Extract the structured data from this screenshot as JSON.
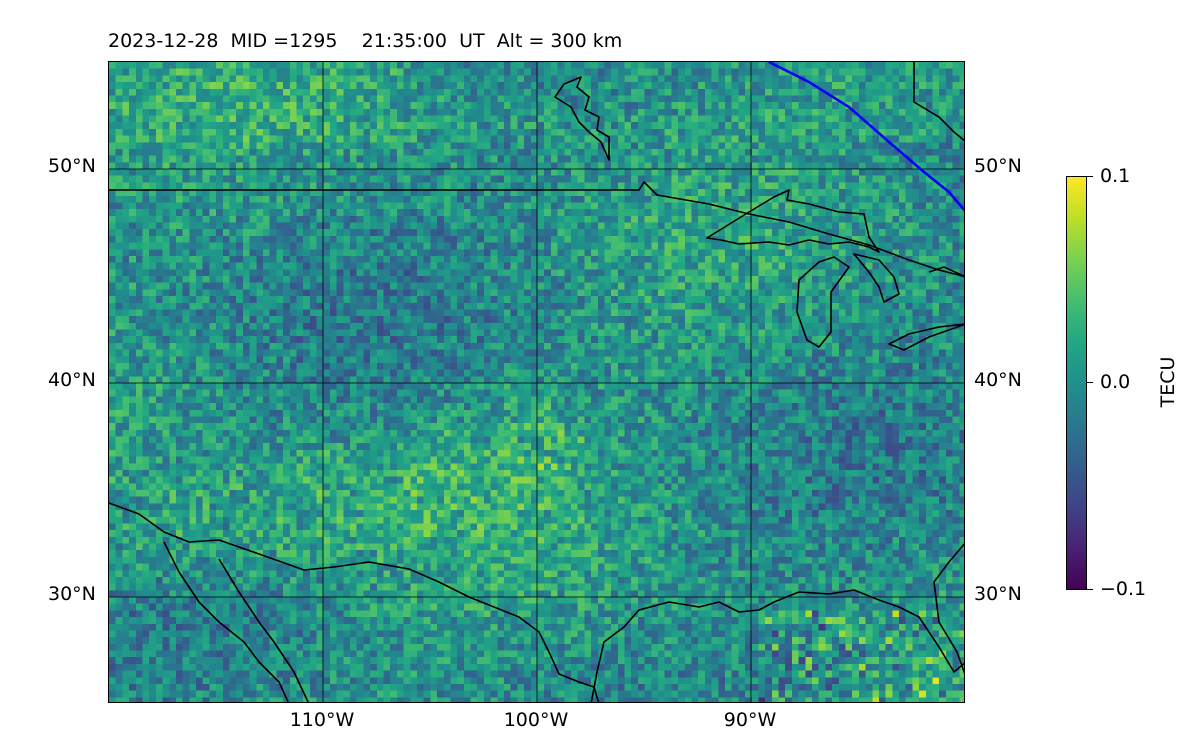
{
  "title": {
    "date": "2023-12-28",
    "mid": "MID =1295",
    "time": "21:35:00",
    "ut": "UT",
    "alt": "Alt = 300 km"
  },
  "map": {
    "lon_range": [
      -120,
      -80
    ],
    "lat_range": [
      25,
      55
    ],
    "lat_labels": [
      "50°N",
      "40°N",
      "30°N"
    ],
    "lon_labels": [
      "110°W",
      "100°W",
      "90°W"
    ],
    "grid": true,
    "field": "TEC perturbation (synthetic approximation of pixel field)",
    "coastline_color": "#000000",
    "terminator_color": "#0000ff"
  },
  "colorbar": {
    "label": "TECU",
    "colormap": "viridis",
    "vmin": -0.1,
    "vmax": 0.1,
    "tick_labels": [
      "0.1",
      "0.0",
      "−0.1"
    ]
  }
}
